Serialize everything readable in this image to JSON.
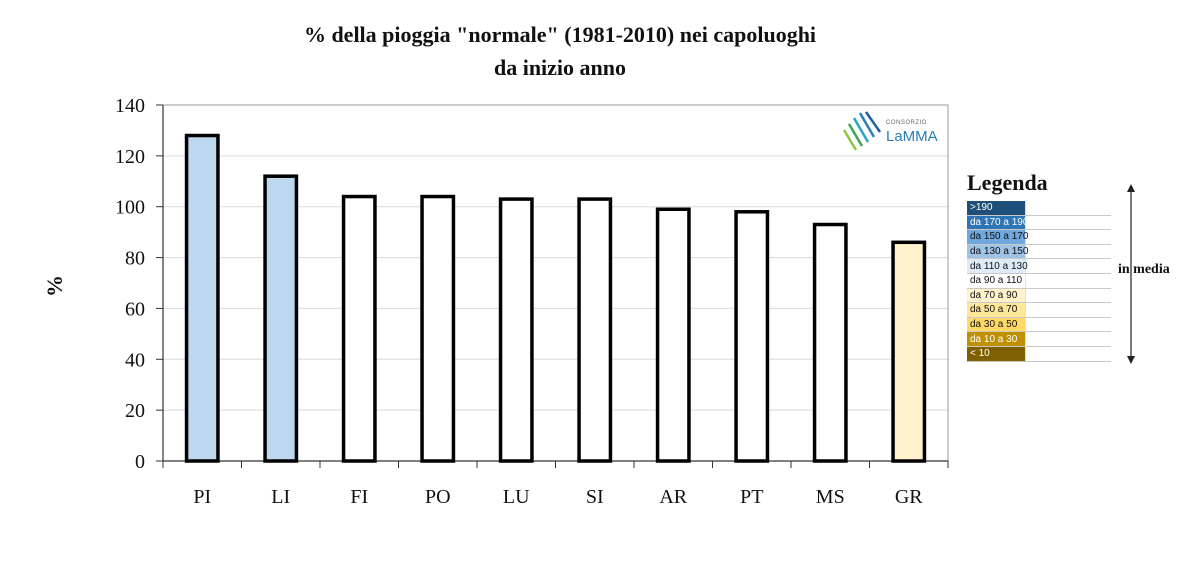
{
  "chart_data": {
    "type": "bar",
    "title_lines": [
      "% della pioggia \"normale\" (1981-2010) nei capoluoghi",
      "da inizio anno"
    ],
    "ylabel": "%",
    "xlabel": "",
    "categories": [
      "PI",
      "LI",
      "FI",
      "PO",
      "LU",
      "SI",
      "AR",
      "PT",
      "MS",
      "GR"
    ],
    "values": [
      128,
      112,
      104,
      104,
      103,
      103,
      99,
      98,
      93,
      86
    ],
    "bar_colors": [
      "#bdd7ee",
      "#bdd7ee",
      "#ffffff",
      "#ffffff",
      "#ffffff",
      "#ffffff",
      "#ffffff",
      "#ffffff",
      "#ffffff",
      "#fff2cc"
    ],
    "ylim": [
      0,
      140
    ],
    "yticks": [
      0,
      20,
      40,
      60,
      80,
      100,
      120,
      140
    ],
    "grid": true
  },
  "logo": {
    "small_text": "CONSORZIO",
    "main_text": "LaMMA"
  },
  "legend": {
    "title": "Legenda",
    "side_label": "in media",
    "items": [
      {
        "label": ">190",
        "color": "#1f4e79"
      },
      {
        "label": "da 170 a 190",
        "color": "#2e75b6"
      },
      {
        "label": "da 150 a 170",
        "color": "#6fa8dc"
      },
      {
        "label": "da 130 a 150",
        "color": "#9dc3e6"
      },
      {
        "label": "da 110 a 130",
        "color": "#deebf7"
      },
      {
        "label": "da 90 a 110",
        "color": "#ffffff"
      },
      {
        "label": "da 70 a 90",
        "color": "#fff2cc"
      },
      {
        "label": "da 50 a 70",
        "color": "#ffe699"
      },
      {
        "label": "da 30 a 50",
        "color": "#ffd966"
      },
      {
        "label": "da 10 a 30",
        "color": "#bf9000"
      },
      {
        "label": "< 10",
        "color": "#7f6000"
      }
    ]
  }
}
